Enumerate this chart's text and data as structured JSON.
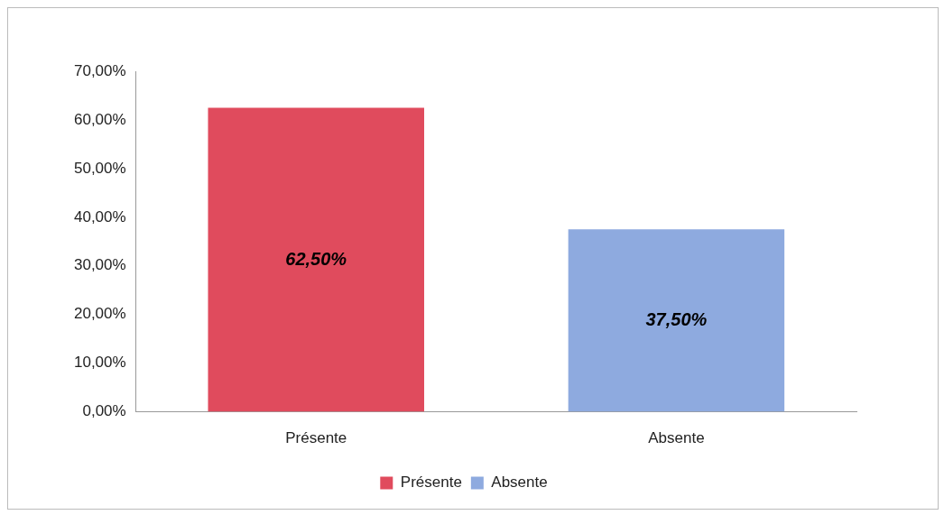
{
  "chart_data": {
    "type": "bar",
    "categories": [
      "Présente",
      "Absente"
    ],
    "series": [
      {
        "name": "Présente",
        "color": "#e04b5d",
        "values": [
          62.5,
          null
        ],
        "value_labels": [
          "62,50%",
          null
        ]
      },
      {
        "name": "Absente",
        "color": "#8eaadf",
        "values": [
          null,
          37.5
        ],
        "value_labels": [
          null,
          "37,50%"
        ]
      }
    ],
    "ylim": [
      0,
      70
    ],
    "yticks": [
      {
        "value": 0,
        "label": "0,00%"
      },
      {
        "value": 10,
        "label": "10,00%"
      },
      {
        "value": 20,
        "label": "20,00%"
      },
      {
        "value": 30,
        "label": "30,00%"
      },
      {
        "value": 40,
        "label": "40,00%"
      },
      {
        "value": 50,
        "label": "50,00%"
      },
      {
        "value": 60,
        "label": "60,00%"
      },
      {
        "value": 70,
        "label": "70,00%"
      }
    ],
    "grid": false,
    "legend": "bottom"
  }
}
